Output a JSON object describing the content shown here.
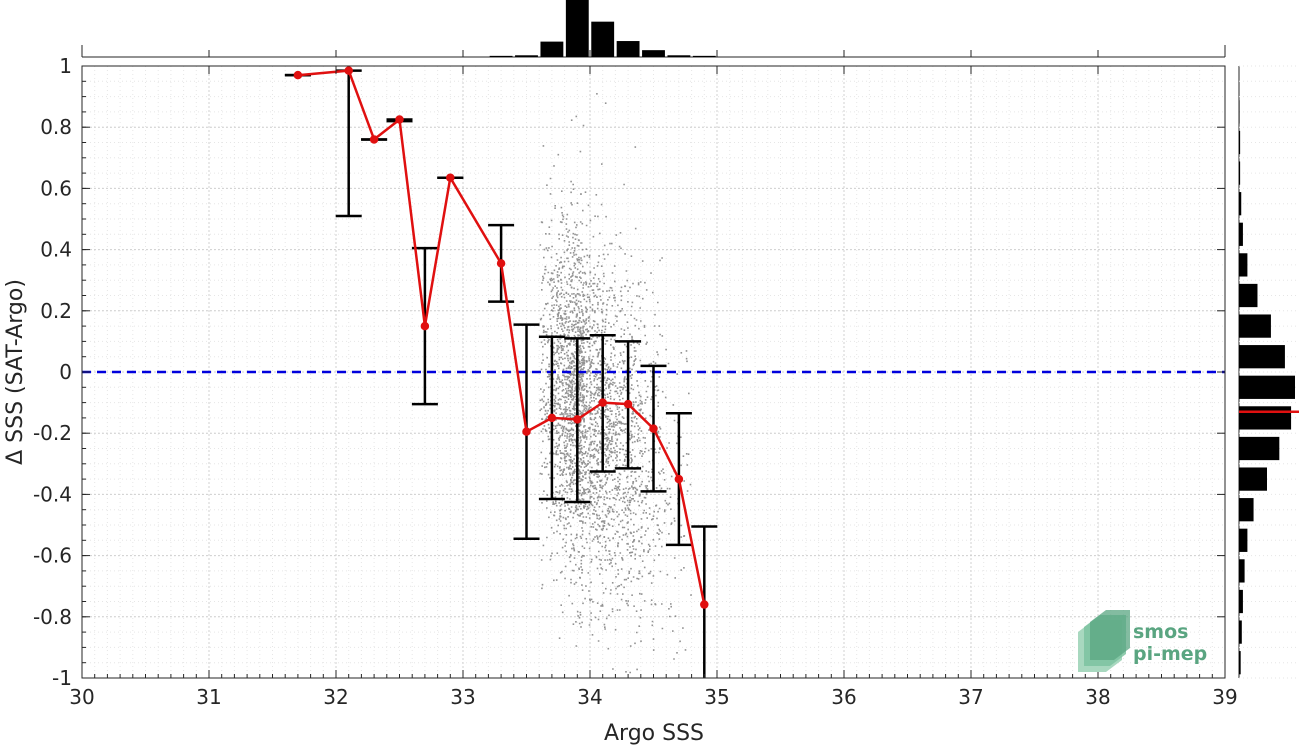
{
  "chart_data": {
    "type": "scatter",
    "xlabel": "Argo SSS",
    "ylabel": "Δ SSS (SAT-Argo)",
    "xlim": [
      30,
      39
    ],
    "ylim": [
      -1,
      1
    ],
    "x_ticks": [
      "30",
      "31",
      "32",
      "33",
      "34",
      "35",
      "36",
      "37",
      "38",
      "39"
    ],
    "y_ticks": [
      "-1",
      "-0.8",
      "-0.6",
      "-0.4",
      "-0.2",
      "0",
      "0.2",
      "0.4",
      "0.6",
      "0.8",
      "1"
    ],
    "grid": true,
    "zero_line": {
      "y": 0,
      "color": "#0000dd",
      "style": "dashed"
    },
    "scatter_color": "#808080",
    "scatter_cloud": {
      "x_range": [
        33.6,
        34.8
      ],
      "center_x": 33.95,
      "center_y": -0.12,
      "sd_y": 0.28
    },
    "binned_means": {
      "color": "#e01010",
      "x": [
        31.7,
        32.1,
        32.3,
        32.5,
        32.7,
        32.9,
        33.3,
        33.5,
        33.7,
        33.9,
        34.1,
        34.3,
        34.5,
        34.7,
        34.9
      ],
      "mean": [
        0.97,
        0.985,
        0.76,
        0.825,
        0.15,
        0.635,
        0.355,
        -0.195,
        -0.15,
        -0.155,
        -0.1,
        -0.105,
        -0.185,
        -0.35,
        -0.76
      ],
      "err_low": [
        0.97,
        0.51,
        0.76,
        0.82,
        -0.105,
        0.635,
        0.23,
        -0.545,
        -0.415,
        -0.425,
        -0.325,
        -0.315,
        -0.39,
        -0.565,
        -1.0
      ],
      "err_high": [
        0.97,
        0.985,
        0.76,
        0.825,
        0.405,
        0.635,
        0.48,
        0.155,
        0.115,
        0.11,
        0.12,
        0.1,
        0.02,
        -0.135,
        -0.505
      ]
    },
    "top_histogram": {
      "bin_centers": [
        33.3,
        33.5,
        33.7,
        33.9,
        34.1,
        34.3,
        34.5,
        34.7,
        34.9
      ],
      "relative_counts": [
        0.02,
        0.03,
        0.27,
        1.0,
        0.62,
        0.28,
        0.12,
        0.03,
        0.02
      ]
    },
    "right_histogram": {
      "bin_centers": [
        -0.95,
        -0.85,
        -0.75,
        -0.65,
        -0.55,
        -0.45,
        -0.35,
        -0.25,
        -0.15,
        -0.05,
        0.05,
        0.15,
        0.25,
        0.35,
        0.45,
        0.55,
        0.65,
        0.75,
        0.85
      ],
      "relative_counts": [
        0.03,
        0.05,
        0.07,
        0.1,
        0.15,
        0.26,
        0.5,
        0.72,
        0.93,
        1.0,
        0.82,
        0.57,
        0.33,
        0.15,
        0.07,
        0.04,
        0.02,
        0.02,
        0.01
      ],
      "median": -0.13,
      "median_color": "#e01010"
    }
  },
  "logo": {
    "line1": "smos",
    "line2": "pi-mep",
    "color": "#5aa581"
  }
}
